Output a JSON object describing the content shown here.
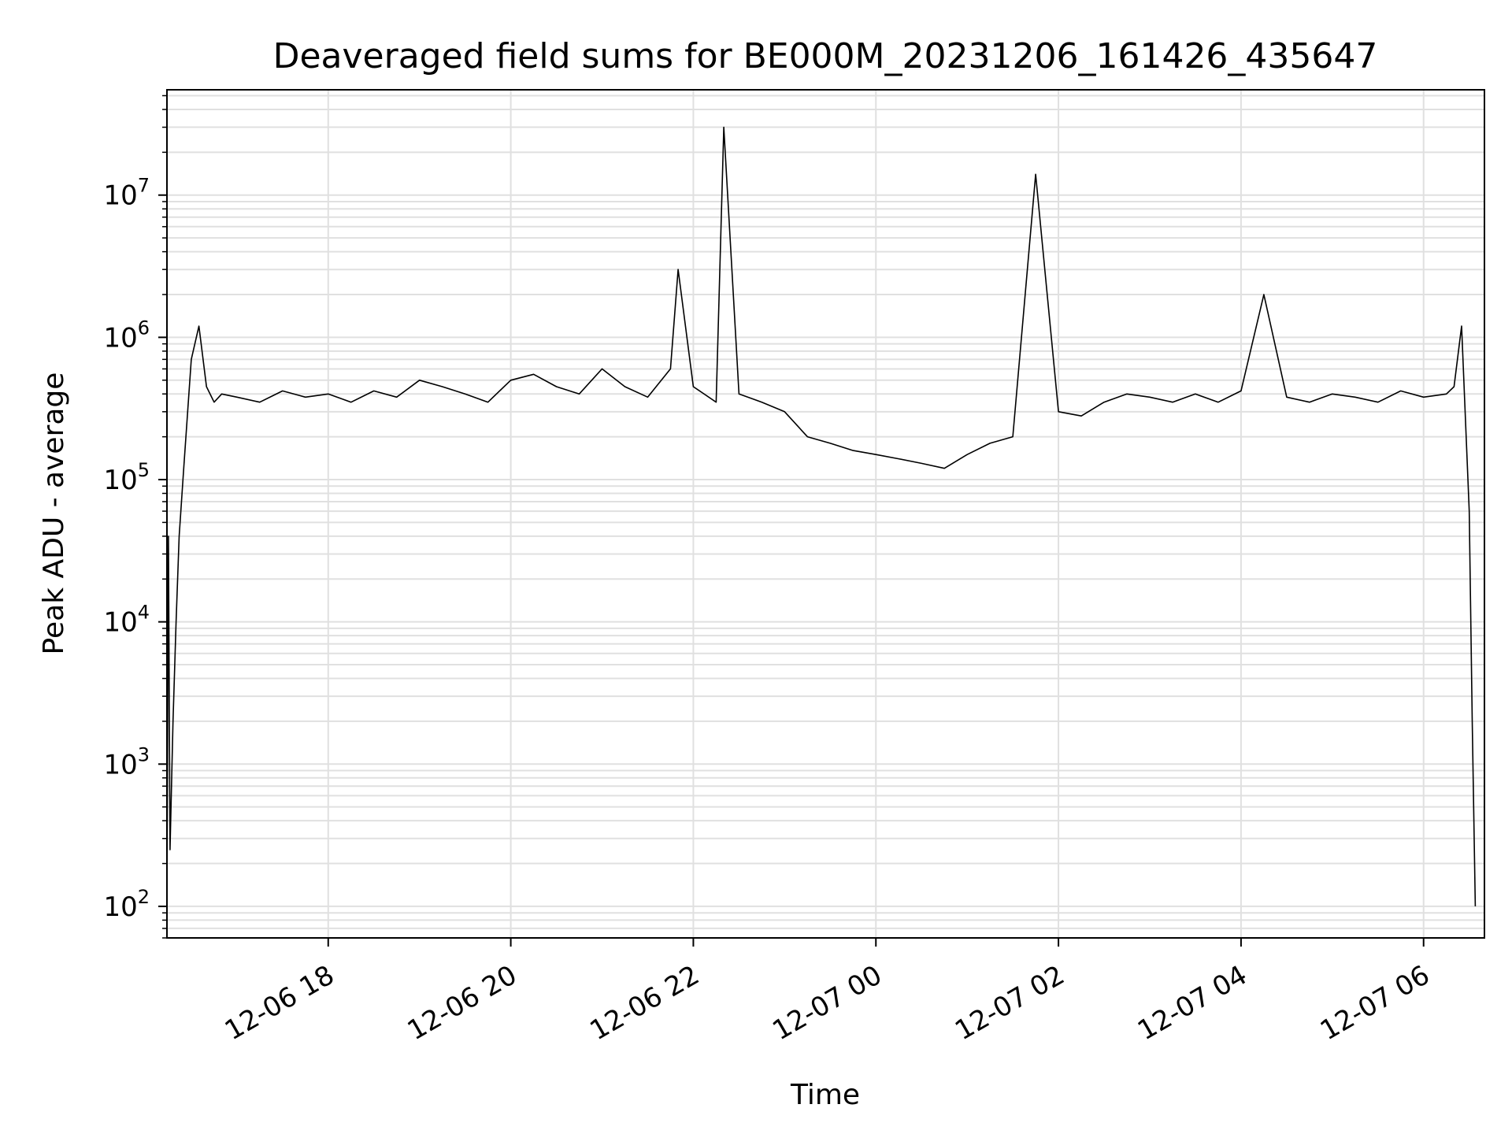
{
  "chart_data": {
    "type": "line",
    "title": "Deaveraged field sums for BE000M_20231206_161426_435647",
    "xlabel": "Time",
    "ylabel": "Peak ADU - average",
    "yscale": "log",
    "grid": true,
    "line_color": "#000000",
    "grid_color": "#e0e0e0",
    "xlim": [
      "2023-12-06 16:14",
      "2023-12-07 06:40"
    ],
    "ylim": [
      60,
      55000000
    ],
    "x_ticks": [
      "12-06 18",
      "12-06 20",
      "12-06 22",
      "12-07 00",
      "12-07 02",
      "12-07 04",
      "12-07 06"
    ],
    "x_tick_values": [
      "2023-12-06 18:00",
      "2023-12-06 20:00",
      "2023-12-06 22:00",
      "2023-12-07 00:00",
      "2023-12-07 02:00",
      "2023-12-07 04:00",
      "2023-12-07 06:00"
    ],
    "y_ticks": [
      {
        "base": "10",
        "exp": "2",
        "value": 100
      },
      {
        "base": "10",
        "exp": "3",
        "value": 1000
      },
      {
        "base": "10",
        "exp": "4",
        "value": 10000
      },
      {
        "base": "10",
        "exp": "5",
        "value": 100000
      },
      {
        "base": "10",
        "exp": "6",
        "value": 1000000
      },
      {
        "base": "10",
        "exp": "7",
        "value": 10000000
      }
    ],
    "series": [
      {
        "x": [
          "2023-12-06 16:14",
          "2023-12-06 16:15",
          "2023-12-06 16:16",
          "2023-12-06 16:18",
          "2023-12-06 16:20",
          "2023-12-06 16:22",
          "2023-12-06 16:25",
          "2023-12-06 16:30",
          "2023-12-06 16:35",
          "2023-12-06 16:40",
          "2023-12-06 16:45",
          "2023-12-06 16:50",
          "2023-12-06 17:00",
          "2023-12-06 17:15",
          "2023-12-06 17:30",
          "2023-12-06 17:45",
          "2023-12-06 18:00",
          "2023-12-06 18:15",
          "2023-12-06 18:30",
          "2023-12-06 18:45",
          "2023-12-06 19:00",
          "2023-12-06 19:15",
          "2023-12-06 19:30",
          "2023-12-06 19:45",
          "2023-12-06 20:00",
          "2023-12-06 20:15",
          "2023-12-06 20:30",
          "2023-12-06 20:45",
          "2023-12-06 21:00",
          "2023-12-06 21:15",
          "2023-12-06 21:30",
          "2023-12-06 21:45",
          "2023-12-06 21:50",
          "2023-12-06 22:00",
          "2023-12-06 22:15",
          "2023-12-06 22:20",
          "2023-12-06 22:30",
          "2023-12-06 22:45",
          "2023-12-06 23:00",
          "2023-12-06 23:15",
          "2023-12-06 23:30",
          "2023-12-06 23:45",
          "2023-12-07 00:00",
          "2023-12-07 00:15",
          "2023-12-07 00:30",
          "2023-12-07 00:45",
          "2023-12-07 01:00",
          "2023-12-07 01:15",
          "2023-12-07 01:30",
          "2023-12-07 01:45",
          "2023-12-07 02:00",
          "2023-12-07 02:15",
          "2023-12-07 02:30",
          "2023-12-07 02:45",
          "2023-12-07 03:00",
          "2023-12-07 03:15",
          "2023-12-07 03:30",
          "2023-12-07 03:45",
          "2023-12-07 04:00",
          "2023-12-07 04:15",
          "2023-12-07 04:30",
          "2023-12-07 04:45",
          "2023-12-07 05:00",
          "2023-12-07 05:15",
          "2023-12-07 05:30",
          "2023-12-07 05:45",
          "2023-12-07 06:00",
          "2023-12-07 06:15",
          "2023-12-07 06:20",
          "2023-12-07 06:25",
          "2023-12-07 06:28",
          "2023-12-07 06:30",
          "2023-12-07 06:32",
          "2023-12-07 06:34"
        ],
        "y": [
          110,
          40000,
          250,
          2000,
          10000,
          40000,
          120000,
          700000,
          1200000,
          450000,
          350000,
          400000,
          380000,
          350000,
          420000,
          380000,
          400000,
          350000,
          420000,
          380000,
          500000,
          450000,
          400000,
          350000,
          500000,
          550000,
          450000,
          400000,
          600000,
          450000,
          380000,
          600000,
          3000000,
          450000,
          350000,
          30000000,
          400000,
          350000,
          300000,
          200000,
          180000,
          160000,
          150000,
          140000,
          130000,
          120000,
          150000,
          180000,
          200000,
          14000000,
          300000,
          280000,
          350000,
          400000,
          380000,
          350000,
          400000,
          350000,
          420000,
          2000000,
          380000,
          350000,
          400000,
          380000,
          350000,
          420000,
          380000,
          400000,
          450000,
          1200000,
          200000,
          60000,
          2000,
          100
        ]
      }
    ]
  }
}
